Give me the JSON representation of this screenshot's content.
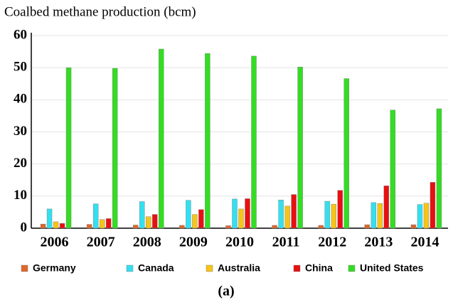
{
  "chart_data": {
    "type": "bar",
    "title": "Coalbed methane production (bcm)",
    "caption": "(a)",
    "categories": [
      "2006",
      "2007",
      "2008",
      "2009",
      "2010",
      "2011",
      "2012",
      "2013",
      "2014"
    ],
    "series": [
      {
        "name": "Germany",
        "color": "#e0662a",
        "values": [
          1.3,
          1.2,
          1.0,
          0.9,
          0.8,
          0.9,
          0.9,
          1.1,
          1.1
        ]
      },
      {
        "name": "Canada",
        "color": "#33e0f0",
        "values": [
          6.0,
          7.6,
          8.3,
          8.7,
          9.1,
          8.8,
          8.4,
          8.0,
          7.4
        ]
      },
      {
        "name": "Australia",
        "color": "#f5c518",
        "values": [
          2.0,
          2.7,
          3.6,
          4.3,
          6.0,
          6.9,
          7.5,
          7.7,
          7.8
        ]
      },
      {
        "name": "China",
        "color": "#e81010",
        "values": [
          1.5,
          3.0,
          4.3,
          5.8,
          9.2,
          10.5,
          11.8,
          13.2,
          14.3
        ]
      },
      {
        "name": "United States",
        "color": "#33dd22",
        "values": [
          50.0,
          49.8,
          55.8,
          54.4,
          53.6,
          50.2,
          46.6,
          36.8,
          37.2
        ]
      }
    ],
    "ylim": [
      0,
      60
    ],
    "yticks": [
      0,
      10,
      20,
      30,
      40,
      50,
      60
    ],
    "grid": true,
    "legend": "bottom"
  }
}
